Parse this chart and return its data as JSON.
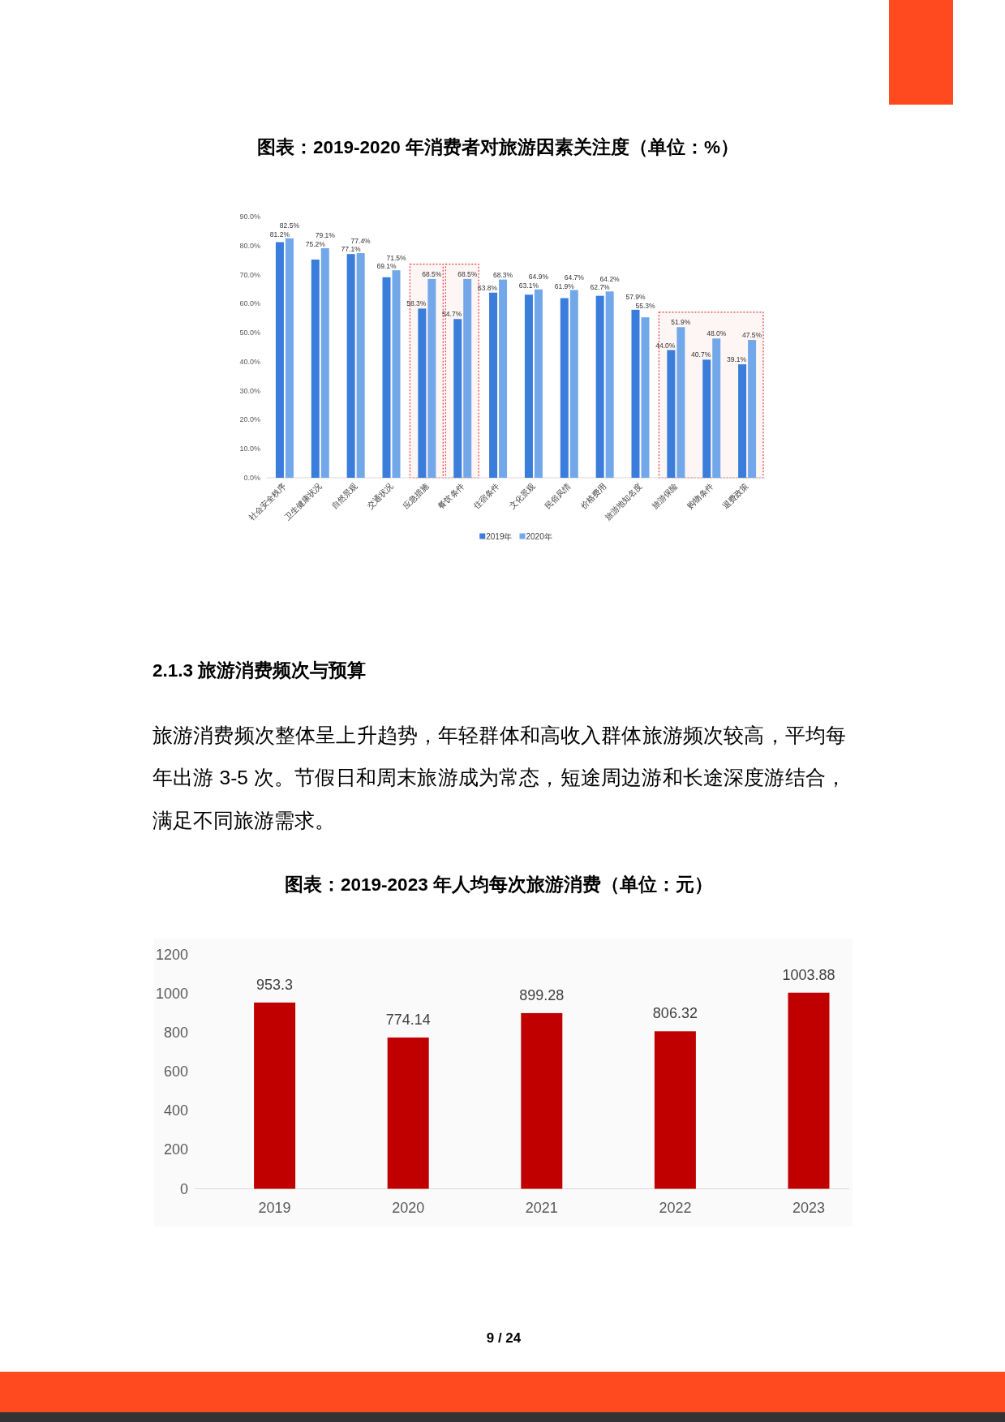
{
  "chart_data": [
    {
      "type": "bar",
      "title": "图表：2019-2020 年消费者对旅游因素关注度（单位：%）",
      "categories": [
        "社会安全秩序",
        "卫生健康状况",
        "自然景观",
        "交通状况",
        "应急措施",
        "餐饮条件",
        "住宿条件",
        "文化景观",
        "民俗风情",
        "价格费用",
        "旅游地知名度",
        "旅游保险",
        "购物条件",
        "退费政策"
      ],
      "series": [
        {
          "name": "2019年",
          "color": "#3b7ddb",
          "values": [
            81.2,
            75.2,
            77.1,
            69.1,
            58.3,
            54.7,
            63.8,
            63.1,
            61.9,
            62.7,
            57.9,
            44.0,
            40.7,
            39.1
          ],
          "value_labels": [
            "81.2%",
            "75.2%",
            "77.1%",
            "69.1%",
            "58.3%",
            "54.7%",
            "63.8%",
            "63.1%",
            "61.9%",
            "62.7%",
            "57.9%",
            "44.0%",
            "40.7%",
            "39.1%"
          ]
        },
        {
          "name": "2020年",
          "color": "#72a8ea",
          "values": [
            82.5,
            79.1,
            77.4,
            71.5,
            68.5,
            68.5,
            68.3,
            64.9,
            64.7,
            64.2,
            55.3,
            51.9,
            48.0,
            47.5
          ],
          "value_labels": [
            "82.5%",
            "79.1%",
            "77.4%",
            "71.5%",
            "68.5%",
            "68.5%",
            "68.3%",
            "64.9%",
            "64.7%",
            "64.2%",
            "55.3%",
            "51.9%",
            "48.0%",
            "47.5%"
          ]
        }
      ],
      "ylim": [
        0,
        90
      ],
      "yticks": [
        {
          "value": 0,
          "label": "0.0%"
        },
        {
          "value": 10,
          "label": "10.0%"
        },
        {
          "value": 20,
          "label": "20.0%"
        },
        {
          "value": 30,
          "label": "30.0%"
        },
        {
          "value": 40,
          "label": "40.0%"
        },
        {
          "value": 50,
          "label": "50.0%"
        },
        {
          "value": 60,
          "label": "60.0%"
        },
        {
          "value": 70,
          "label": "70.0%"
        },
        {
          "value": 80,
          "label": "80.0%"
        },
        {
          "value": 90,
          "label": "90.0%"
        }
      ],
      "legend": "bottom",
      "bands": [
        {
          "axis": "x",
          "from": "应急措施",
          "to": "应急措施",
          "color": "#e8383d"
        },
        {
          "axis": "x",
          "from": "餐饮条件",
          "to": "餐饮条件",
          "color": "#e8383d"
        },
        {
          "axis": "x",
          "from": "旅游保险",
          "to": "退费政策",
          "color": "#e8383d"
        }
      ],
      "annotations": [
        "2.1.3 旅游消费频次与预算",
        "旅游消费频次整体呈上升趋势，年轻群体和高收入群体旅游频次较高，平均每年出游 3-5 次。节假日和周末旅游成为常态，短途周边游和长途深度游结合，满足不同旅游需求。"
      ]
    },
    {
      "type": "bar",
      "title": "图表：2019-2023 年人均每次旅游消费（单位：元）",
      "categories": [
        "2019",
        "2020",
        "2021",
        "2022",
        "2023"
      ],
      "values": [
        953.3,
        774.14,
        899.28,
        806.32,
        1003.88
      ],
      "color": "#c00000",
      "data_labels": true,
      "ylim": [
        0,
        1200
      ],
      "yticks": [
        0,
        200,
        400,
        600,
        800,
        1000,
        1200
      ],
      "annotations": [
        "9 / 24"
      ]
    }
  ]
}
